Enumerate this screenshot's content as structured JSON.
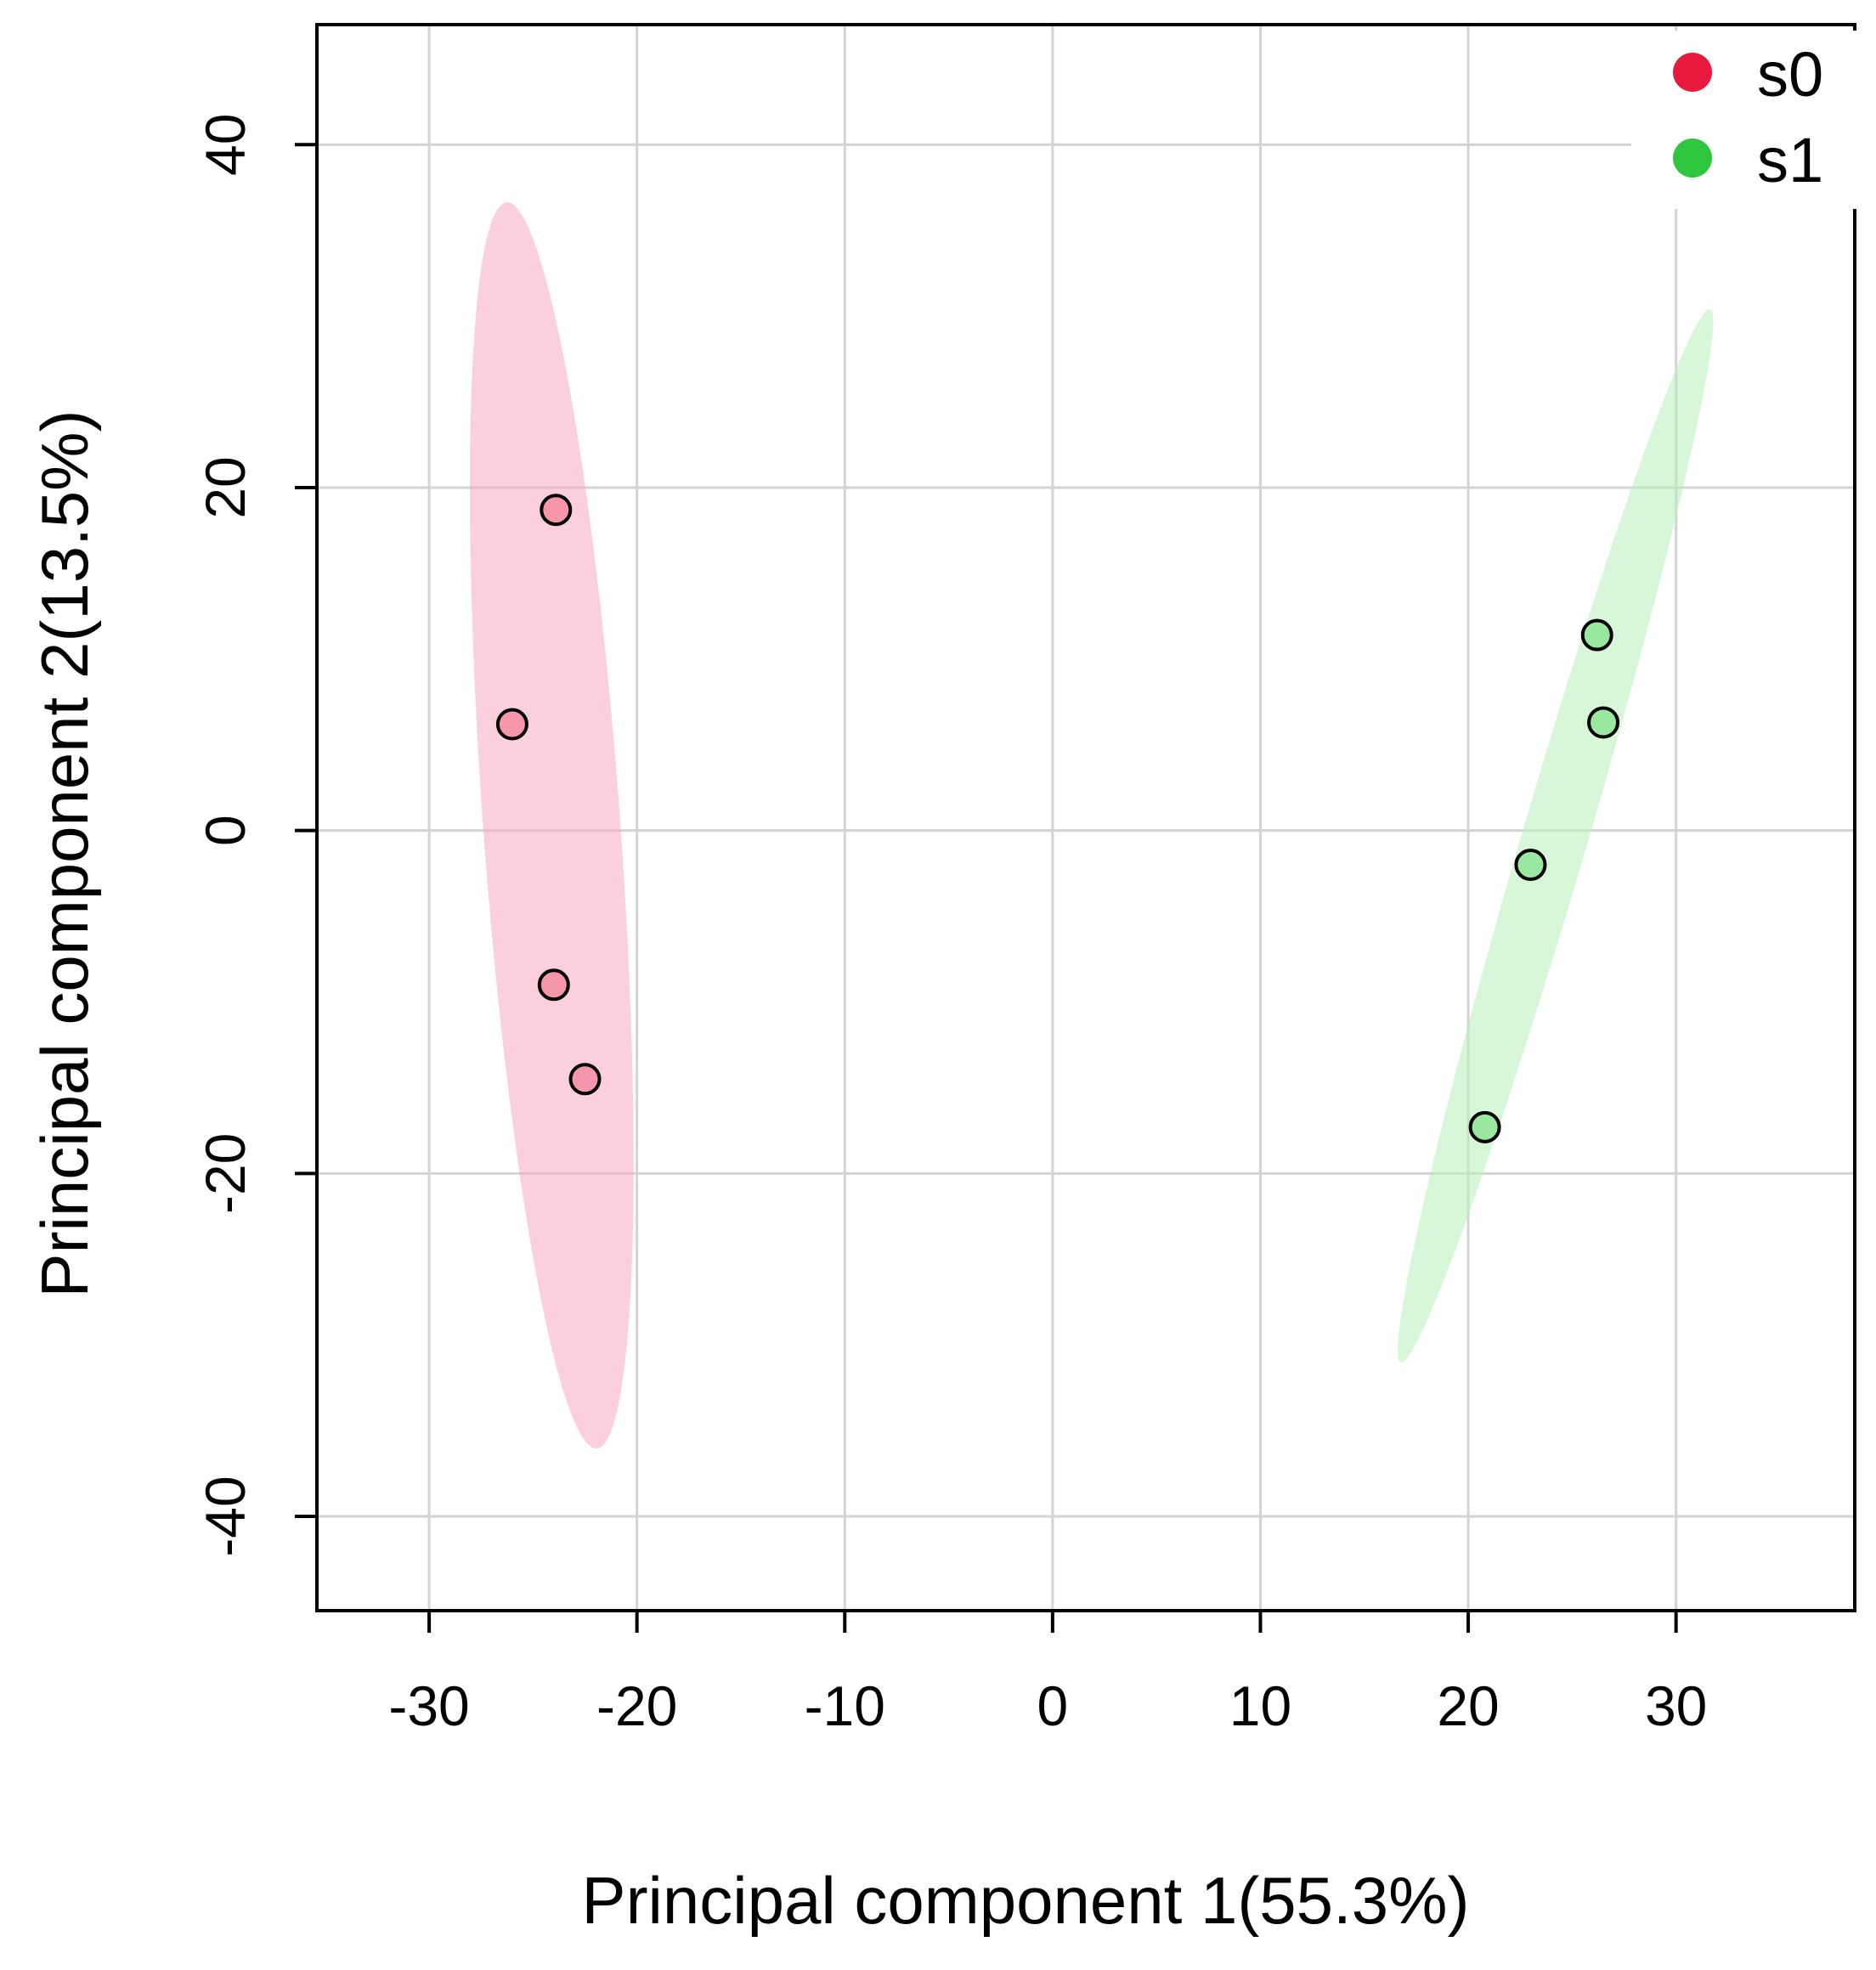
{
  "chart_data": {
    "type": "scatter",
    "title": "",
    "xlabel": "Principal component 1(55.3%)",
    "ylabel": "Principal component 2(13.5%)",
    "xlim": [
      -35.4,
      38.6
    ],
    "ylim": [
      -45.5,
      47.0
    ],
    "xticks": [
      -30,
      -20,
      -10,
      0,
      10,
      20,
      30
    ],
    "yticks": [
      -40,
      -20,
      0,
      20,
      40
    ],
    "xtick_labels": [
      "-30",
      "-20",
      "-10",
      "0",
      "10",
      "20",
      "30"
    ],
    "ytick_labels": [
      "-40",
      "-20",
      "0",
      "20",
      "40"
    ],
    "grid": true,
    "legend_position": "top-right",
    "series": [
      {
        "name": "s0",
        "color": "#e8193c",
        "point_fill": "#f596ab",
        "ellipse_fill": "#f7a8bd",
        "points": [
          {
            "x": -23.9,
            "y": 18.7
          },
          {
            "x": -26.0,
            "y": 6.2
          },
          {
            "x": -24.0,
            "y": -9.0
          },
          {
            "x": -22.5,
            "y": -14.5
          }
        ],
        "ellipse": {
          "cx": -24.1,
          "cy": 0.3,
          "semi_major": 36.4,
          "semi_minor": 3.3,
          "angle_deg": 93.4
        }
      },
      {
        "name": "s1",
        "color": "#2fc640",
        "point_fill": "#9ae89f",
        "ellipse_fill": "#b8f0ba",
        "points": [
          {
            "x": 26.2,
            "y": 11.4
          },
          {
            "x": 26.5,
            "y": 6.3
          },
          {
            "x": 23.0,
            "y": -2.0
          },
          {
            "x": 20.8,
            "y": -17.3
          }
        ],
        "ellipse": {
          "cx": 24.2,
          "cy": -0.3,
          "semi_major": 31.6,
          "semi_minor": 1.6,
          "angle_deg": 76.4
        }
      }
    ]
  }
}
